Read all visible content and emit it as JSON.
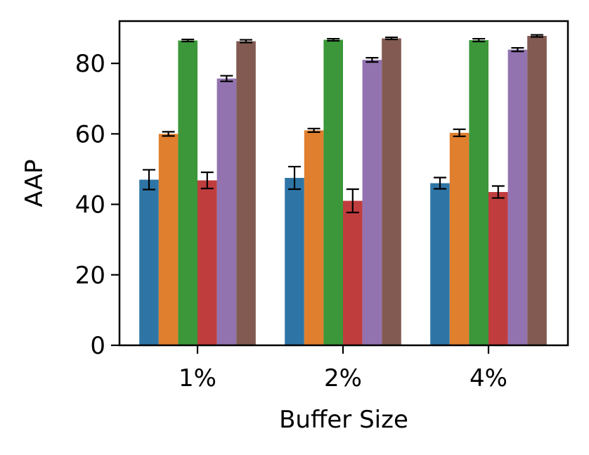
{
  "chart_data": {
    "type": "bar",
    "title": "",
    "xlabel": "Buffer Size",
    "ylabel": "AAP",
    "categories": [
      "1%",
      "2%",
      "4%"
    ],
    "ylim": [
      0,
      92
    ],
    "yticks": [
      0,
      20,
      40,
      60,
      80
    ],
    "grid": false,
    "legend": "none",
    "series": [
      {
        "color": "#2e75a6",
        "values": [
          47.0,
          47.5,
          46.0
        ],
        "errors": [
          2.8,
          3.2,
          1.6
        ]
      },
      {
        "color": "#e07f2e",
        "values": [
          60.0,
          61.0,
          60.3
        ],
        "errors": [
          0.6,
          0.5,
          1.0
        ]
      },
      {
        "color": "#3b9739",
        "values": [
          86.5,
          86.7,
          86.6
        ],
        "errors": [
          0.3,
          0.3,
          0.4
        ]
      },
      {
        "color": "#c03d3e",
        "values": [
          46.8,
          41.0,
          43.5
        ],
        "errors": [
          2.3,
          3.3,
          1.7
        ]
      },
      {
        "color": "#9273b0",
        "values": [
          75.7,
          81.0,
          83.9
        ],
        "errors": [
          0.8,
          0.6,
          0.5
        ]
      },
      {
        "color": "#825a52",
        "values": [
          86.3,
          87.1,
          87.8
        ],
        "errors": [
          0.4,
          0.3,
          0.3
        ]
      }
    ]
  }
}
